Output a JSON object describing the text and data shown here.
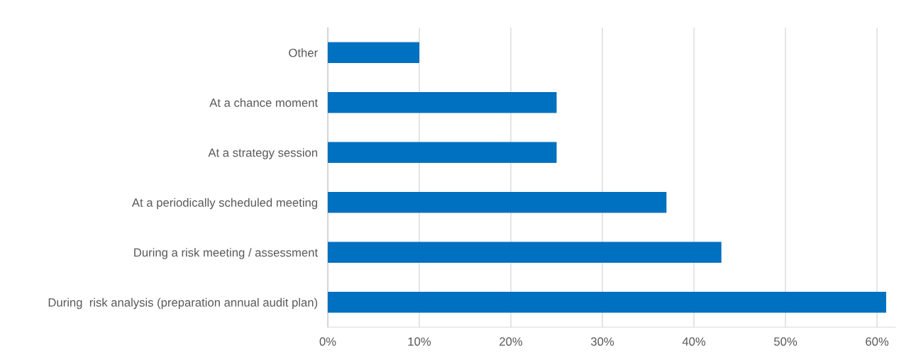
{
  "chart_data": {
    "type": "bar",
    "orientation": "horizontal",
    "categories": [
      "Other",
      "At a chance moment",
      "At a strategy session",
      "At a periodically scheduled meeting",
      "During a risk meeting / assessment",
      "During  risk analysis (preparation annual audit plan)"
    ],
    "values": [
      10,
      25,
      25,
      37,
      43,
      61
    ],
    "color": "#0070c0",
    "xlim": [
      0,
      62
    ],
    "xticks": [
      {
        "value": 0,
        "label": "0%"
      },
      {
        "value": 10,
        "label": "10%"
      },
      {
        "value": 20,
        "label": "20%"
      },
      {
        "value": 30,
        "label": "30%"
      },
      {
        "value": 40,
        "label": "40%"
      },
      {
        "value": 50,
        "label": "50%"
      },
      {
        "value": 60,
        "label": "60%"
      }
    ],
    "grid": "x",
    "legend": false
  }
}
